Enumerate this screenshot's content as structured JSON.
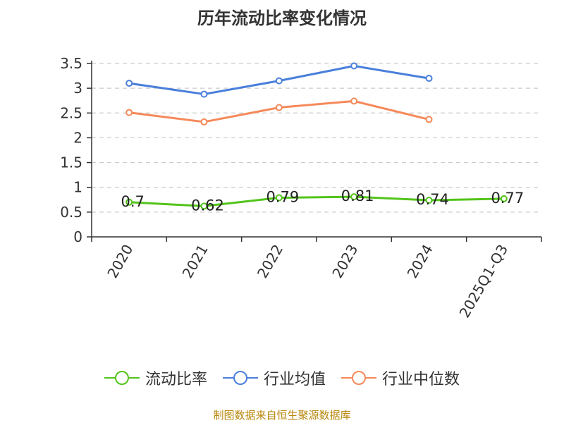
{
  "chart_data": {
    "type": "line",
    "title": "历年流动比率变化情况",
    "categories": [
      "2020",
      "2021",
      "2022",
      "2023",
      "2024",
      "2025Q1-Q3"
    ],
    "series": [
      {
        "name": "流动比率",
        "color": "#52c41a",
        "values": [
          0.7,
          0.62,
          0.79,
          0.81,
          0.74,
          0.77
        ],
        "data_labels": [
          "0.7",
          "0.62",
          "0.79",
          "0.81",
          "0.74",
          "0.77"
        ]
      },
      {
        "name": "行业均值",
        "color": "#4a7fdb",
        "values": [
          3.1,
          2.88,
          3.15,
          3.45,
          3.2,
          null
        ]
      },
      {
        "name": "行业中位数",
        "color": "#f5895a",
        "values": [
          2.51,
          2.32,
          2.61,
          2.74,
          2.37,
          null
        ]
      }
    ],
    "yticks": [
      "0",
      "0.5",
      "1",
      "1.5",
      "2",
      "2.5",
      "3",
      "3.5"
    ],
    "ylim": [
      0,
      3.5
    ],
    "grid": true,
    "legend_position": "bottom"
  },
  "source_note": "制图数据来自恒生聚源数据库"
}
